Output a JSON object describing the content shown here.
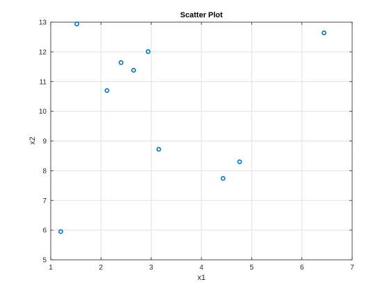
{
  "chart_data": {
    "type": "scatter",
    "title": "Scatter Plot",
    "xlabel": "x1",
    "ylabel": "x2",
    "xlim": [
      1,
      7
    ],
    "ylim": [
      5,
      13
    ],
    "xticks": [
      1,
      2,
      3,
      4,
      5,
      6,
      7
    ],
    "yticks": [
      5,
      6,
      7,
      8,
      9,
      10,
      11,
      12,
      13
    ],
    "grid": true,
    "marker": "circle",
    "marker_color": "#0072BD",
    "series": [
      {
        "x": [
          1.52,
          6.44,
          2.4,
          2.94,
          2.65,
          2.12,
          3.15,
          4.76,
          4.43,
          1.2
        ],
        "y": [
          12.94,
          12.64,
          11.64,
          12.01,
          11.38,
          10.7,
          8.72,
          8.3,
          7.74,
          5.95
        ]
      }
    ]
  }
}
